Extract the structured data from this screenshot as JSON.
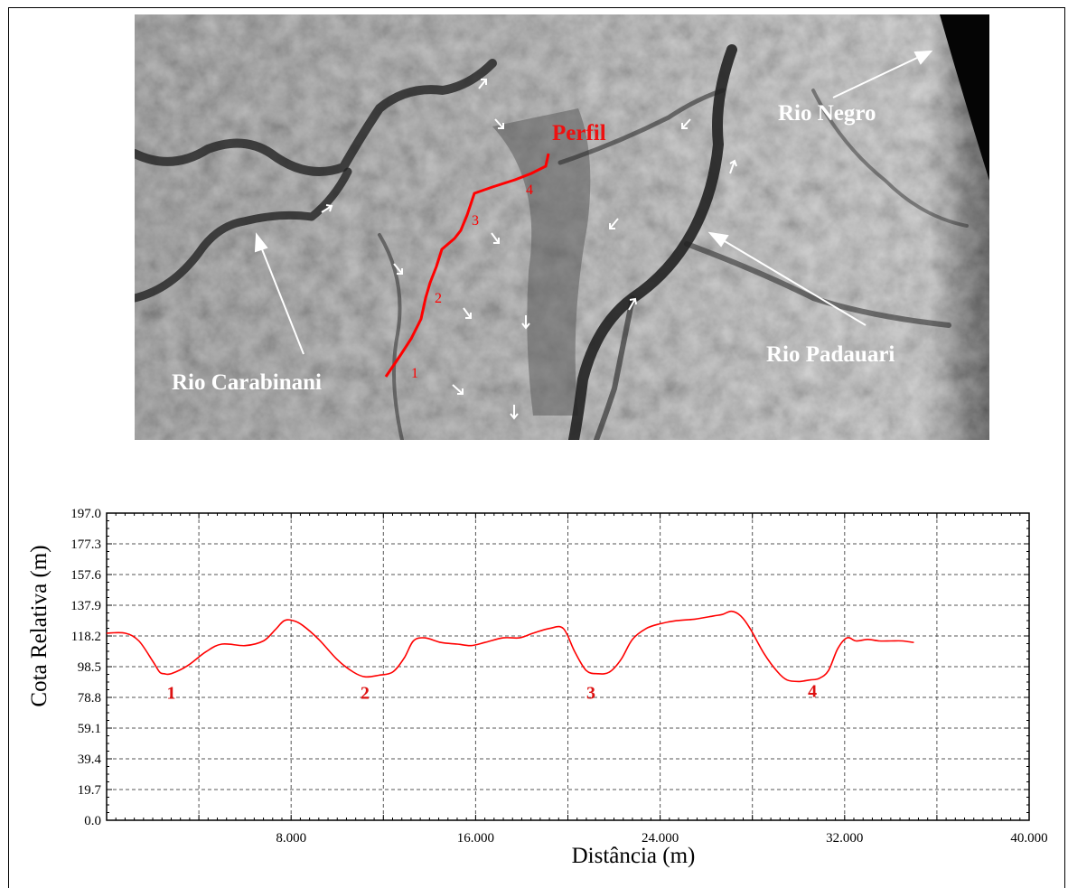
{
  "map": {
    "labels": {
      "perfil": "Perfil",
      "rio_negro": "Rio Negro",
      "rio_carabinani": "Rio Carabinani",
      "rio_padauari": "Rio Padauari"
    },
    "profile_markers": [
      "1",
      "2",
      "3",
      "4"
    ],
    "colors": {
      "profile": "#ff0000",
      "labels": "#ffffff",
      "perfil_label": "#ee1111"
    }
  },
  "chart_data": {
    "type": "line",
    "xlabel": "Distância (m)",
    "ylabel": "Cota Relativa (m)",
    "xlim": [
      0,
      40000
    ],
    "ylim": [
      0,
      197
    ],
    "x_ticks": [
      8000,
      16000,
      24000,
      32000,
      40000
    ],
    "x_tick_labels": [
      "8.000",
      "16.000",
      "24.000",
      "32.000",
      "40.000"
    ],
    "y_tick_labels": [
      "0.0",
      "19.7",
      "39.4",
      "59.1",
      "78.8",
      "98.5",
      "118.2",
      "137.9",
      "157.6",
      "177.3",
      "197.0"
    ],
    "grid": true,
    "series": [
      {
        "color": "#ff0000",
        "x": [
          0,
          800,
          1400,
          2000,
          2300,
          2500,
          2800,
          3500,
          4300,
          5000,
          6000,
          6800,
          7300,
          7700,
          8100,
          8500,
          9200,
          10000,
          10700,
          11200,
          11800,
          12400,
          12900,
          13300,
          13800,
          14500,
          15200,
          15800,
          16400,
          17200,
          17900,
          18500,
          19200,
          19800,
          20300,
          20800,
          21300,
          21800,
          22300,
          22800,
          23400,
          24000,
          24700,
          25500,
          26300,
          26700,
          27100,
          27500,
          27900,
          28500,
          29100,
          29500,
          30000,
          30500,
          30900,
          31300,
          31700,
          32100,
          32500,
          33000,
          33500,
          34000,
          34500,
          35000
        ],
        "y": [
          120,
          120,
          115,
          102,
          95,
          94,
          94,
          99,
          108,
          113,
          112,
          115,
          122,
          128,
          128,
          125,
          116,
          103,
          95,
          92,
          93,
          95,
          104,
          115,
          117,
          114,
          113,
          112,
          114,
          117,
          117,
          120,
          123,
          123,
          108,
          96,
          94,
          95,
          103,
          116,
          123,
          126,
          128,
          129,
          131,
          132,
          134,
          131,
          123,
          107,
          95,
          90,
          89,
          90,
          91,
          96,
          110,
          117,
          115,
          116,
          115,
          115,
          115,
          114
        ]
      }
    ],
    "annotations": [
      {
        "text": "1",
        "x": 2800,
        "y": 78
      },
      {
        "text": "2",
        "x": 11200,
        "y": 78
      },
      {
        "text": "3",
        "x": 21000,
        "y": 78
      },
      {
        "text": "4",
        "x": 30600,
        "y": 79
      }
    ]
  }
}
